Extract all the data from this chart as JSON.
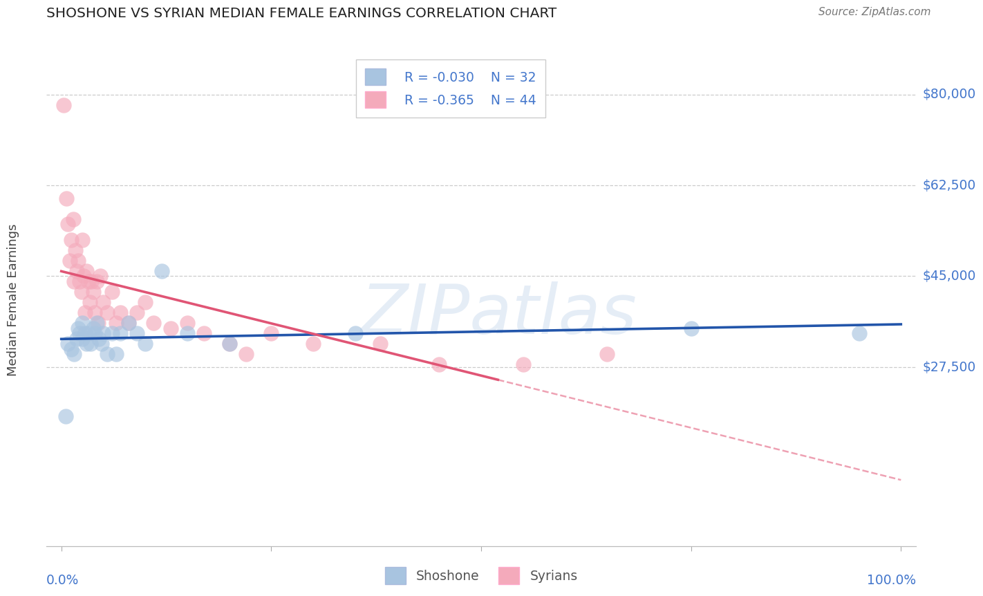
{
  "title": "SHOSHONE VS SYRIAN MEDIAN FEMALE EARNINGS CORRELATION CHART",
  "source": "Source: ZipAtlas.com",
  "ylabel": "Median Female Earnings",
  "ytick_vals": [
    27500,
    45000,
    62500,
    80000
  ],
  "ytick_labels": [
    "$27,500",
    "$45,000",
    "$62,500",
    "$80,000"
  ],
  "ymax": 88000,
  "ymin": -7000,
  "xmin": -0.018,
  "xmax": 1.018,
  "legend_r1": "R = -0.030",
  "legend_n1": "N = 32",
  "legend_r2": "R = -0.365",
  "legend_n2": "N = 44",
  "legend_label1": "Shoshone",
  "legend_label2": "Syrians",
  "color_blue": "#A8C4E0",
  "color_pink": "#F4AABB",
  "color_line_blue": "#2255AA",
  "color_line_pink": "#E05575",
  "title_color": "#222222",
  "axis_color": "#4477CC",
  "source_color": "#777777",
  "background_color": "#FFFFFF",
  "grid_color": "#CCCCCC",
  "watermark_text": "ZIPatlas",
  "shoshone_x": [
    0.005,
    0.008,
    0.012,
    0.015,
    0.018,
    0.02,
    0.022,
    0.025,
    0.025,
    0.028,
    0.03,
    0.032,
    0.035,
    0.038,
    0.04,
    0.042,
    0.045,
    0.048,
    0.05,
    0.055,
    0.06,
    0.065,
    0.07,
    0.08,
    0.09,
    0.1,
    0.12,
    0.15,
    0.2,
    0.35,
    0.75,
    0.95
  ],
  "shoshone_y": [
    18000,
    32000,
    31000,
    30000,
    33000,
    35000,
    34000,
    36000,
    33000,
    34000,
    32000,
    34000,
    32000,
    35000,
    34000,
    36000,
    33000,
    32000,
    34000,
    30000,
    34000,
    30000,
    34000,
    36000,
    34000,
    32000,
    46000,
    34000,
    32000,
    34000,
    35000,
    34000
  ],
  "syrians_x": [
    0.003,
    0.006,
    0.008,
    0.01,
    0.012,
    0.014,
    0.015,
    0.017,
    0.018,
    0.02,
    0.022,
    0.024,
    0.025,
    0.027,
    0.028,
    0.03,
    0.032,
    0.034,
    0.036,
    0.038,
    0.04,
    0.042,
    0.044,
    0.046,
    0.05,
    0.055,
    0.06,
    0.065,
    0.07,
    0.08,
    0.09,
    0.1,
    0.11,
    0.13,
    0.15,
    0.17,
    0.2,
    0.22,
    0.25,
    0.3,
    0.38,
    0.45,
    0.55,
    0.65
  ],
  "syrians_y": [
    78000,
    60000,
    55000,
    48000,
    52000,
    56000,
    44000,
    50000,
    46000,
    48000,
    44000,
    42000,
    52000,
    45000,
    38000,
    46000,
    44000,
    40000,
    44000,
    42000,
    38000,
    44000,
    36000,
    45000,
    40000,
    38000,
    42000,
    36000,
    38000,
    36000,
    38000,
    40000,
    36000,
    35000,
    36000,
    34000,
    32000,
    30000,
    34000,
    32000,
    32000,
    28000,
    28000,
    30000
  ],
  "trend_blue_x0": 0.0,
  "trend_blue_x1": 1.0,
  "trend_pink_solid_x0": 0.0,
  "trend_pink_solid_x1": 0.52,
  "trend_pink_dash_x0": 0.52,
  "trend_pink_dash_x1": 1.0
}
